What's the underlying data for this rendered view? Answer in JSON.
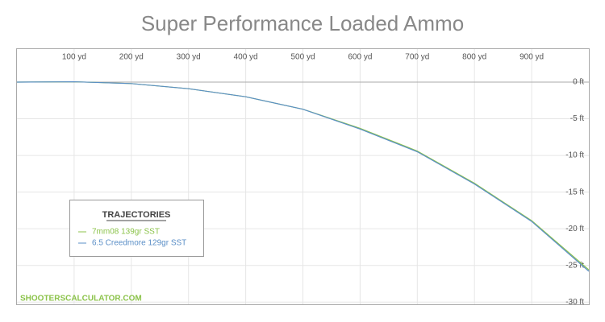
{
  "chart_data": {
    "type": "line",
    "title": "Super Performance Loaded Ammo",
    "x": [
      0,
      100,
      200,
      300,
      400,
      500,
      600,
      700,
      800,
      900,
      1000
    ],
    "series": [
      {
        "name": "7mm08 139gr SST",
        "color": "#8cc34b",
        "values": [
          0,
          0.05,
          -0.2,
          -0.9,
          -2.0,
          -3.7,
          -6.3,
          -9.4,
          -13.8,
          -18.9,
          -25.6
        ]
      },
      {
        "name": "6.5 Creedmore 129gr SST",
        "color": "#5b8fc7",
        "values": [
          0,
          0.05,
          -0.2,
          -0.9,
          -2.0,
          -3.7,
          -6.4,
          -9.5,
          -13.9,
          -19.0,
          -25.8
        ]
      }
    ],
    "xlim": [
      0,
      1000
    ],
    "xticks": [
      {
        "value": 100,
        "label": "100 yd"
      },
      {
        "value": 200,
        "label": "200 yd"
      },
      {
        "value": 300,
        "label": "300 yd"
      },
      {
        "value": 400,
        "label": "400 yd"
      },
      {
        "value": 500,
        "label": "500 yd"
      },
      {
        "value": 600,
        "label": "600 yd"
      },
      {
        "value": 700,
        "label": "700 yd"
      },
      {
        "value": 800,
        "label": "800 yd"
      },
      {
        "value": 900,
        "label": "900 yd"
      }
    ],
    "ylim": [
      -30.3,
      4.5
    ],
    "yticks": [
      {
        "value": 0,
        "label": "0 ft"
      },
      {
        "value": -5,
        "label": "-5 ft"
      },
      {
        "value": -10,
        "label": "-10 ft"
      },
      {
        "value": -15,
        "label": "-15 ft"
      },
      {
        "value": -20,
        "label": "-20 ft"
      },
      {
        "value": -25,
        "label": "-25 ft"
      },
      {
        "value": -30,
        "label": "-30 ft"
      }
    ],
    "grid": true,
    "legend_title": "TRAJECTORIES",
    "legend_position": "lower left",
    "watermark": "SHOOTERSCALCULATOR.COM"
  }
}
